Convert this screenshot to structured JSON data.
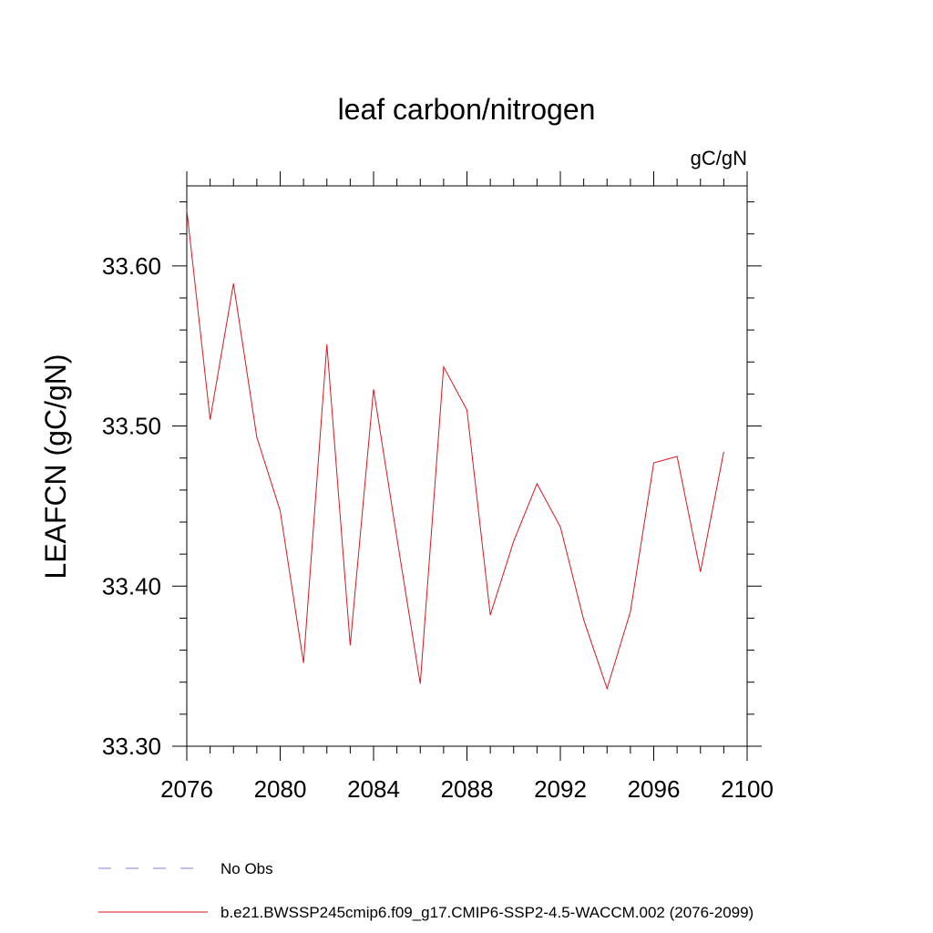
{
  "chart_data": {
    "type": "line",
    "title": "leaf carbon/nitrogen",
    "units": "gC/gN",
    "ylabel": "LEAFCN  (gC/gN)",
    "xlabel": "",
    "xlim": [
      2076,
      2100
    ],
    "ylim": [
      33.3,
      33.65
    ],
    "xticks": [
      2076,
      2080,
      2084,
      2088,
      2092,
      2096,
      2100
    ],
    "xtick_labels": [
      "2076",
      "2080",
      "2084",
      "2088",
      "2092",
      "2096",
      "2100"
    ],
    "yticks": [
      33.3,
      33.4,
      33.5,
      33.6
    ],
    "ytick_labels": [
      "33.30",
      "33.40",
      "33.50",
      "33.60"
    ],
    "grid": false,
    "legend_placement": "bottom",
    "series": [
      {
        "name": "No Obs",
        "color": "#8a7ec8",
        "dash": "dashed",
        "x": [],
        "values": []
      },
      {
        "name": "b.e21.BWSSP245cmip6.f09_g17.CMIP6-SSP2-4.5-WACCM.002 (2076-2099)",
        "color": "#e0141e",
        "dash": "solid",
        "x": [
          2076,
          2077,
          2078,
          2079,
          2080,
          2081,
          2082,
          2083,
          2084,
          2085,
          2086,
          2087,
          2088,
          2089,
          2090,
          2091,
          2092,
          2093,
          2094,
          2095,
          2096,
          2097,
          2098,
          2099
        ],
        "values": [
          33.635,
          33.504,
          33.589,
          33.493,
          33.447,
          33.352,
          33.551,
          33.363,
          33.523,
          33.43,
          33.339,
          33.537,
          33.51,
          33.382,
          33.428,
          33.464,
          33.437,
          33.379,
          33.336,
          33.384,
          33.477,
          33.481,
          33.409,
          33.484
        ]
      }
    ]
  }
}
